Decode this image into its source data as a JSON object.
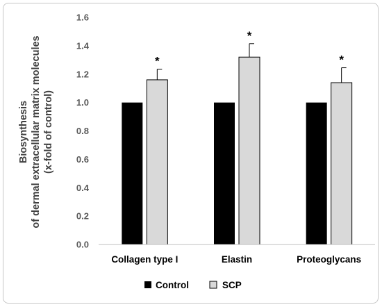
{
  "chart_data": {
    "type": "bar",
    "categories": [
      "Collagen type I",
      "Elastin",
      "Proteoglycans"
    ],
    "series": [
      {
        "name": "Control",
        "values": [
          1.0,
          1.0,
          1.0
        ],
        "color": "#000000"
      },
      {
        "name": "SCP",
        "values": [
          1.16,
          1.32,
          1.14
        ],
        "errors": [
          0.075,
          0.095,
          0.105
        ],
        "color": "#d9d9d9",
        "significance": [
          "*",
          "*",
          "*"
        ]
      }
    ],
    "ylabel_lines": [
      "Biosynthesis",
      "of dermal extracellular matrix molecules",
      "(x-fold of control)"
    ],
    "xlabel": "",
    "ylim": [
      0,
      1.6
    ],
    "yticks": [
      "0.0",
      "0.2",
      "0.4",
      "0.6",
      "0.8",
      "1.0",
      "1.2",
      "1.4",
      "1.6"
    ],
    "grid": false,
    "legend_position": "bottom"
  }
}
